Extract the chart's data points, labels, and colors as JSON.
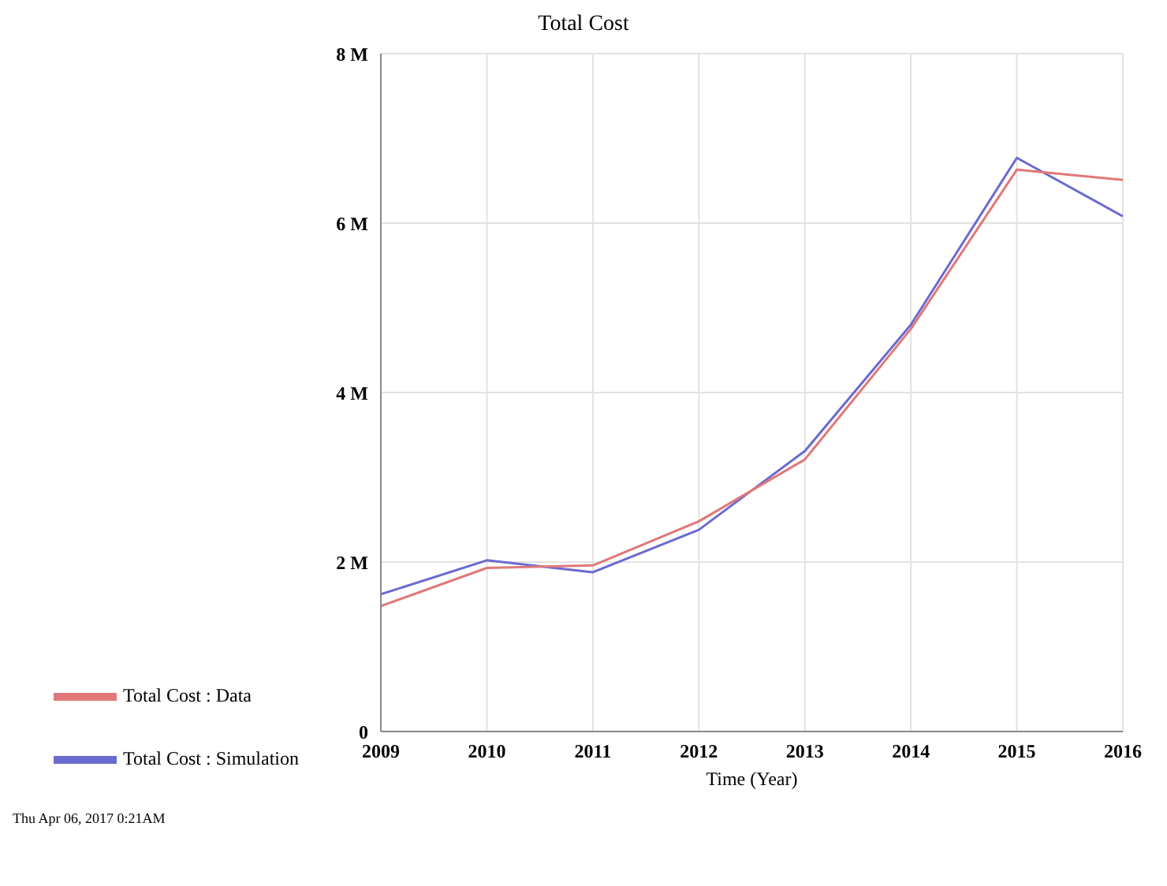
{
  "chart_data": {
    "type": "line",
    "title": "Total Cost",
    "xlabel": "Time (Year)",
    "x": [
      2009,
      2010,
      2011,
      2012,
      2013,
      2014,
      2015,
      2016
    ],
    "series": [
      {
        "name": "Total Cost : Simulation",
        "color": "#6a6ad0",
        "values": [
          1.62,
          2.02,
          1.88,
          2.38,
          3.31,
          4.8,
          6.77,
          6.08
        ]
      },
      {
        "name": "Total Cost : Data",
        "color": "#e07878",
        "values": [
          1.48,
          1.93,
          1.96,
          2.48,
          3.21,
          4.75,
          6.63,
          6.51
        ]
      }
    ],
    "xlim": [
      2009,
      2016
    ],
    "xticks": [
      2009,
      2010,
      2011,
      2012,
      2013,
      2014,
      2015,
      2016
    ],
    "ylim": [
      0,
      8
    ],
    "yticks": [
      0,
      {
        "value": 2,
        "label": "2 M"
      },
      {
        "value": 4,
        "label": "4 M"
      },
      {
        "value": 6,
        "label": "6 M"
      },
      {
        "value": 8,
        "label": "8 M"
      }
    ],
    "grid": true,
    "legend": "bottom",
    "marker": "none",
    "line_style": "solid",
    "annotations": [
      "Thu Apr 06, 2017 0:21AM"
    ]
  }
}
